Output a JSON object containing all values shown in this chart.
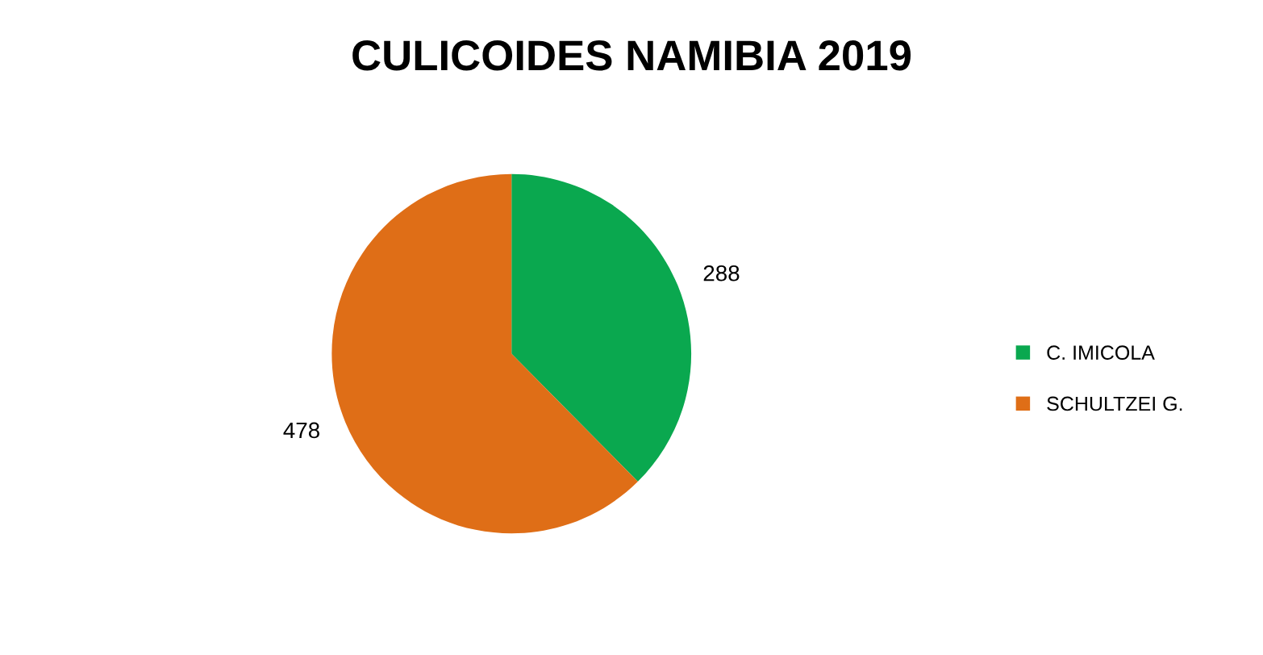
{
  "chart_data": {
    "type": "pie",
    "title": "CULICOIDES NAMIBIA 2019",
    "categories": [
      "C. IMICOLA",
      "SCHULTZEI G."
    ],
    "values": [
      288,
      478
    ],
    "colors": [
      "#0aa84f",
      "#df6e17"
    ],
    "data_labels": true,
    "legend": "right"
  }
}
